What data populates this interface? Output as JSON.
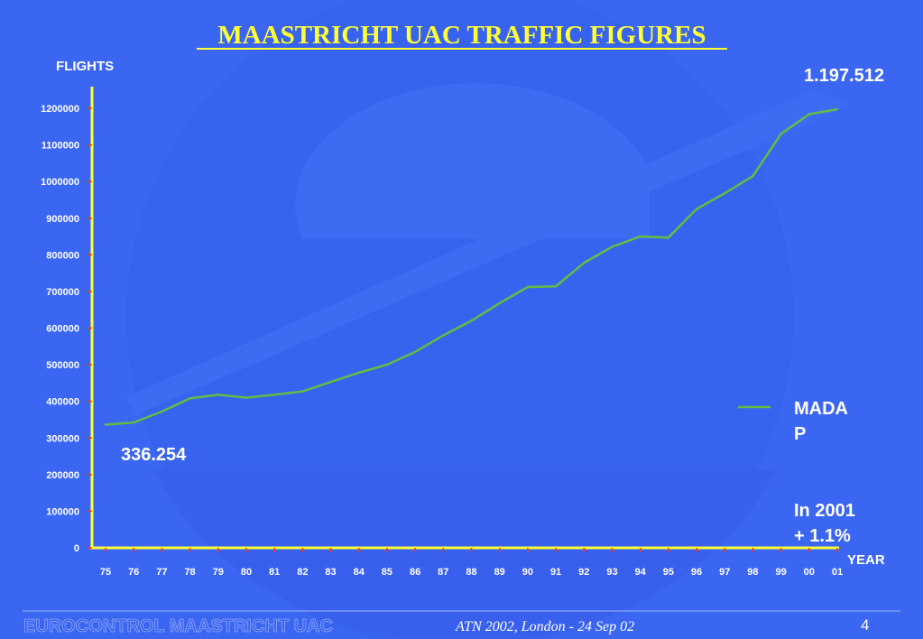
{
  "slide": {
    "title": "MAASTRICHT UAC TRAFFIC FIGURES",
    "footer_left": "EUROCONTROL MAASTRICHT UAC",
    "footer_center": "ATN 2002, London - 24 Sep 02",
    "page_number": "4"
  },
  "annotations": {
    "end_value": "1.197.512",
    "start_value": "336.254",
    "note_line1": "In 2001",
    "note_line2": "+ 1.1%",
    "legend_line1": "MADA",
    "legend_line2": "P"
  },
  "colors": {
    "background": "#3b66f2",
    "title": "#ffff33",
    "axis": "#ffff33",
    "series": "#66bb44",
    "tick_marks": "#ff3300"
  },
  "chart_data": {
    "type": "line",
    "title": "MAASTRICHT UAC TRAFFIC FIGURES",
    "ylabel": "FLIGHTS",
    "xlabel": "YEAR",
    "ylim": [
      0,
      1200000
    ],
    "yticks": [
      0,
      100000,
      200000,
      300000,
      400000,
      500000,
      600000,
      700000,
      800000,
      900000,
      1000000,
      1100000,
      1200000
    ],
    "ytick_labels": [
      "0",
      "100000",
      "200000",
      "300000",
      "400000",
      "500000",
      "600000",
      "700000",
      "800000",
      "900000",
      "1000000",
      "1100000",
      "1200000"
    ],
    "grid": false,
    "legend_position": "right",
    "categories": [
      "75",
      "76",
      "77",
      "78",
      "79",
      "80",
      "81",
      "82",
      "83",
      "84",
      "85",
      "86",
      "87",
      "88",
      "89",
      "90",
      "91",
      "92",
      "93",
      "94",
      "95",
      "96",
      "97",
      "98",
      "99",
      "00",
      "01"
    ],
    "series": [
      {
        "name": "MADAP",
        "values": [
          336254,
          342000,
          372000,
          408000,
          418000,
          410000,
          418000,
          427000,
          453000,
          478000,
          500000,
          535000,
          580000,
          620000,
          668000,
          712000,
          714000,
          778000,
          822000,
          850000,
          847000,
          925000,
          968000,
          1015000,
          1130000,
          1184000,
          1197512
        ]
      }
    ]
  }
}
